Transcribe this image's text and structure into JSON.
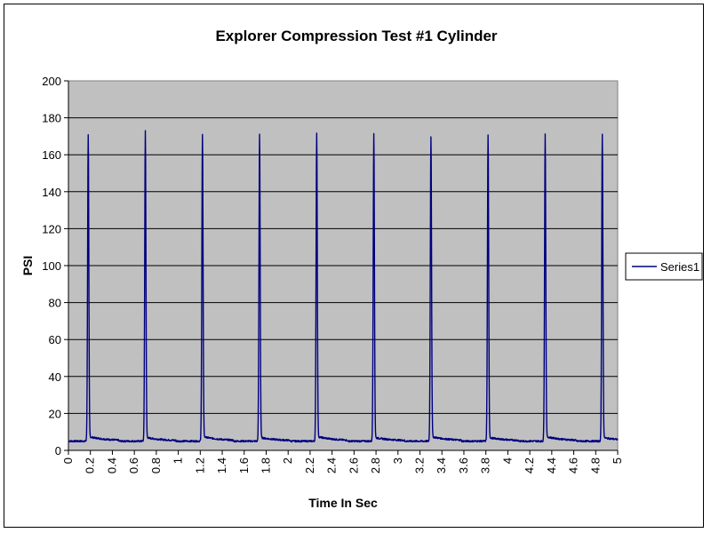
{
  "chart_data": {
    "type": "line",
    "title": "Explorer Compression Test #1 Cylinder",
    "xlabel": "Time In Sec",
    "ylabel": "PSI",
    "xlim": [
      0,
      5
    ],
    "ylim": [
      0,
      200
    ],
    "y_ticks": [
      "0",
      "20",
      "40",
      "60",
      "80",
      "100",
      "120",
      "140",
      "160",
      "180",
      "200"
    ],
    "x_ticks": [
      "0",
      "0.2",
      "0.4",
      "0.6",
      "0.8",
      "1",
      "1.2",
      "1.4",
      "1.6",
      "1.8",
      "2",
      "2.2",
      "2.4",
      "2.6",
      "2.8",
      "3",
      "3.2",
      "3.4",
      "3.6",
      "3.8",
      "4",
      "4.2",
      "4.4",
      "4.6",
      "4.8",
      "5"
    ],
    "grid": {
      "horizontal": true,
      "vertical": false
    },
    "plot_background": "#c0c0c0",
    "legend_position": "right",
    "series": [
      {
        "name": "Series1",
        "color": "#000080",
        "baseline": 5,
        "peaks": [
          {
            "x": 0.18,
            "y": 171
          },
          {
            "x": 0.7,
            "y": 173
          },
          {
            "x": 1.22,
            "y": 171
          },
          {
            "x": 1.74,
            "y": 171
          },
          {
            "x": 2.26,
            "y": 172
          },
          {
            "x": 2.78,
            "y": 171
          },
          {
            "x": 3.3,
            "y": 170
          },
          {
            "x": 3.82,
            "y": 171
          },
          {
            "x": 4.34,
            "y": 171
          },
          {
            "x": 4.86,
            "y": 171
          }
        ]
      }
    ]
  }
}
